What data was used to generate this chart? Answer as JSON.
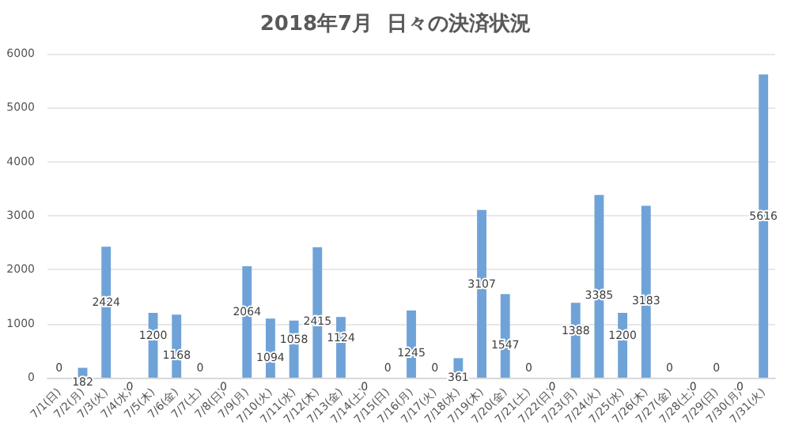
{
  "chart_data": {
    "type": "bar",
    "title": "2018年7月  日々の決済状況",
    "categories": [
      "7/1(日)",
      "7/2(月)",
      "7/3(火)",
      "7/4(水)",
      "7/5(木)",
      "7/6(金)",
      "7/7(土)",
      "7/8(日)",
      "7/9(月)",
      "7/10(火)",
      "7/11(水)",
      "7/12(木)",
      "7/13(金)",
      "7/14(土)",
      "7/15(日)",
      "7/16(月)",
      "7/17(火)",
      "7/18(水)",
      "7/19(木)",
      "7/20(金)",
      "7/21(土)",
      "7/22(日)",
      "7/23(月)",
      "7/24(火)",
      "7/25(水)",
      "7/26(木)",
      "7/27(金)",
      "7/28(土)",
      "7/29(日)",
      "7/30(月)",
      "7/31(火)"
    ],
    "values": [
      0,
      182,
      2424,
      0,
      1200,
      1168,
      0,
      0,
      2064,
      1094,
      1058,
      2415,
      1124,
      0,
      0,
      1245,
      0,
      361,
      3107,
      1547,
      0,
      0,
      1388,
      3385,
      1200,
      3183,
      0,
      0,
      0,
      0,
      5616
    ],
    "color": "#6fa3d8",
    "ylim": [
      0,
      6000
    ],
    "yticks": [
      0,
      1000,
      2000,
      3000,
      4000,
      5000,
      6000
    ],
    "grid": "y",
    "data_labels": true
  }
}
